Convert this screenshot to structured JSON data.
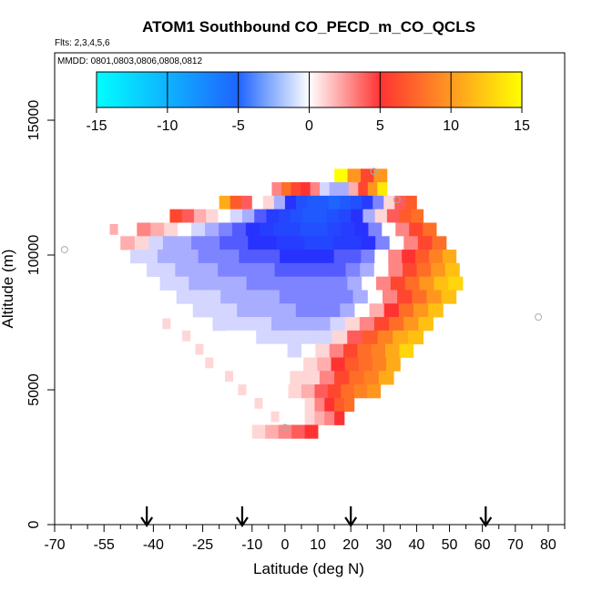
{
  "chart_data": {
    "type": "heatmap",
    "title": "ATOM1 Southbound CO_PECD_m_CO_QCLS",
    "flights_note": "Flts: 2,3,4,5,6",
    "dates_note": "MMDD: 0801,0803,0806,0808,0812",
    "xlabel": "Latitude (deg N)",
    "ylabel": "Altitude (m)",
    "xlim": [
      -70,
      85
    ],
    "ylim": [
      0,
      17500
    ],
    "x_ticks": [
      -70,
      -55,
      -40,
      -25,
      -10,
      0,
      10,
      20,
      30,
      40,
      50,
      60,
      70,
      80
    ],
    "x_minor_ticks": [
      -65,
      -60,
      -50,
      -45,
      -35,
      -30,
      -20,
      -15,
      -5,
      5,
      15,
      25,
      35,
      45,
      55,
      65,
      75,
      85
    ],
    "y_ticks": [
      0,
      5000,
      10000,
      15000
    ],
    "colorbar": {
      "ticks": [
        -15,
        -10,
        -5,
        0,
        5,
        10,
        15
      ],
      "min": -15,
      "max": 15
    },
    "arrows_lat": [
      -42,
      -13,
      20,
      61
    ],
    "outlier_points": [
      [
        -67,
        10200
      ],
      [
        27,
        13100
      ],
      [
        34,
        12050
      ],
      [
        0,
        3600
      ],
      [
        77,
        7700
      ]
    ],
    "band_rows": [
      {
        "alt": 12950,
        "from_lat": 15,
        "to_lat": 31,
        "vals": [
          15,
          10,
          6,
          10
        ]
      },
      {
        "alt": 12450,
        "from_lat": -4,
        "to_lat": 31,
        "vals": [
          3,
          8,
          6,
          5,
          3,
          -1,
          -2,
          -2,
          2,
          6,
          10,
          14
        ]
      },
      {
        "alt": 11950,
        "from_lat": -20,
        "to_lat": 40,
        "vals": [
          11,
          7,
          4,
          0,
          1,
          -2,
          -5,
          -8,
          -9,
          -9,
          -10,
          -9,
          -8,
          -6,
          -3,
          1,
          4,
          7
        ]
      },
      {
        "alt": 11450,
        "from_lat": -35,
        "to_lat": 42,
        "vals": [
          6,
          4,
          2,
          1,
          0,
          -1,
          -2,
          -4,
          -6,
          -7,
          -8,
          -9,
          -9,
          -8,
          -7,
          -5,
          -2,
          1,
          4,
          7,
          8
        ]
      },
      {
        "alt": 10950,
        "from_lat": -45,
        "to_lat": 46,
        "vals": [
          3,
          2,
          1,
          0,
          -1,
          -2,
          -3,
          -4,
          -5,
          -6,
          -7,
          -7,
          -8,
          -8,
          -7,
          -6,
          -5,
          -3,
          0,
          3,
          6,
          8
        ]
      },
      {
        "alt": 10450,
        "from_lat": -50,
        "to_lat": 49,
        "vals": [
          2,
          1,
          -1,
          -2,
          -2,
          -3,
          -3,
          -4,
          -4,
          -5,
          -5,
          -6,
          -6,
          -7,
          -7,
          -6,
          -6,
          -5,
          -3,
          0,
          3,
          6,
          8
        ]
      },
      {
        "alt": 9950,
        "from_lat": -47,
        "to_lat": 52,
        "vals": [
          -1,
          -1,
          -2,
          -2,
          -2,
          -3,
          -3,
          -3,
          -4,
          -4,
          -4,
          -5,
          -5,
          -5,
          -5,
          -4,
          -4,
          -3,
          0,
          3,
          5,
          7,
          9,
          11
        ]
      },
      {
        "alt": 9450,
        "from_lat": -42,
        "to_lat": 53,
        "vals": [
          -1,
          -1,
          -2,
          -2,
          -2,
          -3,
          -3,
          -3,
          -3,
          -4,
          -4,
          -4,
          -4,
          -4,
          -3,
          -2,
          0,
          3,
          6,
          8,
          10,
          12
        ]
      },
      {
        "alt": 8950,
        "from_lat": -38,
        "to_lat": 54,
        "vals": [
          -1,
          -1,
          -2,
          -2,
          -2,
          -2,
          -3,
          -3,
          -3,
          -3,
          -3,
          -3,
          -3,
          -2,
          0,
          3,
          6,
          8,
          10,
          12,
          13
        ]
      },
      {
        "alt": 8450,
        "from_lat": -33,
        "to_lat": 52,
        "vals": [
          -1,
          -1,
          -1,
          -2,
          -2,
          -2,
          -2,
          -3,
          -3,
          -3,
          -3,
          -3,
          -2,
          0,
          3,
          6,
          8,
          10,
          12
        ]
      },
      {
        "alt": 7950,
        "from_lat": -28,
        "to_lat": 48,
        "vals": [
          -1,
          -1,
          -1,
          -2,
          -2,
          -2,
          -2,
          -3,
          -3,
          -3,
          -2,
          0,
          2,
          5,
          8,
          10,
          12
        ]
      },
      {
        "alt": 7450,
        "from_lat": -22,
        "to_lat": 45,
        "vals": [
          -1,
          -1,
          -1,
          -1,
          -2,
          -2,
          -2,
          -2,
          -1,
          1,
          3,
          6,
          8,
          10,
          12
        ]
      },
      {
        "alt": 6950,
        "from_lat": -18,
        "to_lat": 42,
        "vals": [
          0,
          0,
          -1,
          -1,
          -1,
          -1,
          -1,
          1,
          4,
          7,
          9,
          11,
          12
        ]
      },
      {
        "alt": 6450,
        "from_lat": -12,
        "to_lat": 39,
        "vals": [
          0,
          0,
          0,
          -1,
          0,
          1,
          3,
          6,
          8,
          9,
          11,
          13
        ]
      },
      {
        "alt": 5950,
        "from_lat": -7,
        "to_lat": 35,
        "vals": [
          0,
          0,
          0,
          1,
          2,
          5,
          7,
          8,
          9,
          11
        ]
      },
      {
        "alt": 5450,
        "from_lat": -3,
        "to_lat": 33,
        "vals": [
          0,
          1,
          1,
          3,
          6,
          8,
          9,
          11
        ]
      },
      {
        "alt": 4950,
        "from_lat": 1,
        "to_lat": 29,
        "vals": [
          1,
          2,
          4,
          6,
          8,
          9,
          10
        ]
      },
      {
        "alt": 4450,
        "from_lat": 6,
        "to_lat": 21,
        "vals": [
          1,
          3,
          5,
          7,
          8
        ]
      },
      {
        "alt": 3950,
        "from_lat": 6,
        "to_lat": 18,
        "vals": [
          1,
          2,
          3,
          5
        ]
      },
      {
        "alt": 3450,
        "from_lat": -10,
        "to_lat": 10,
        "vals": [
          1,
          2,
          3,
          4,
          5
        ]
      }
    ],
    "faint_cells": [
      {
        "lat": -52,
        "alt": 10950,
        "v": 2
      },
      {
        "lat": -36,
        "alt": 7450,
        "v": 1
      },
      {
        "lat": -30,
        "alt": 7000,
        "v": 1
      },
      {
        "lat": -26,
        "alt": 6500,
        "v": 1
      },
      {
        "lat": -23,
        "alt": 6000,
        "v": 1
      },
      {
        "lat": -17,
        "alt": 5500,
        "v": 1
      },
      {
        "lat": -13,
        "alt": 5000,
        "v": 1
      },
      {
        "lat": -8,
        "alt": 4500,
        "v": 1
      },
      {
        "lat": -3,
        "alt": 4000,
        "v": 1
      }
    ]
  }
}
